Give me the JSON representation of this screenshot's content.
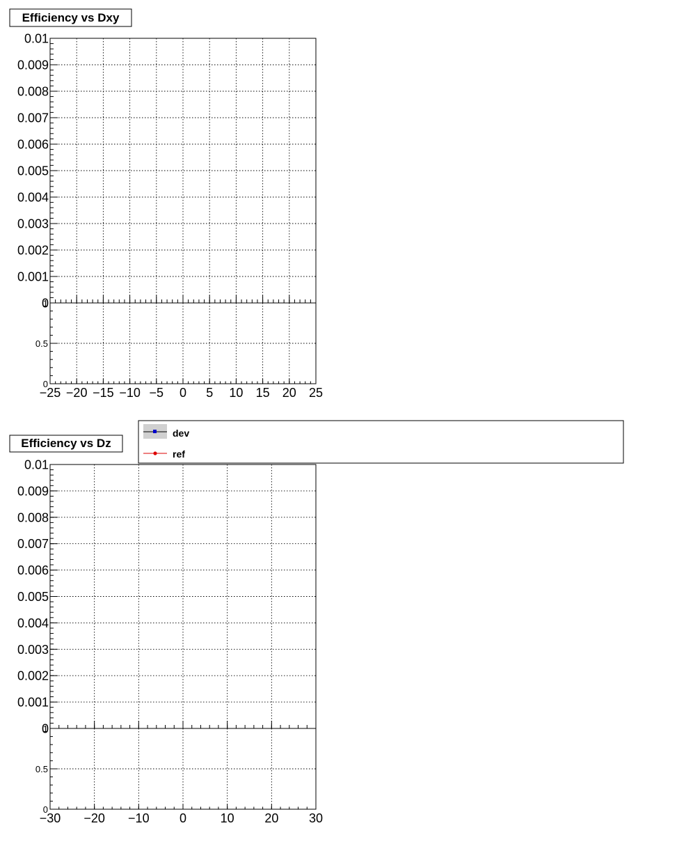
{
  "colors": {
    "dev": "#0000cc",
    "ref": "#dd0000",
    "dev_band": "#d0d0d0"
  },
  "legend": {
    "entries": [
      {
        "label": "dev",
        "marker": "square",
        "color": "#0000cc"
      },
      {
        "label": "ref",
        "marker": "circle",
        "color": "#dd0000"
      }
    ]
  },
  "chart_data": [
    {
      "type": "line",
      "title": "Efficiency vs Dxy",
      "xlabel": "",
      "ylabel": "",
      "xlim": [
        -25,
        25
      ],
      "xticks": [
        "−25",
        "−20",
        "−15",
        "−10",
        "−5",
        "0",
        "5",
        "10",
        "15",
        "20",
        "25"
      ],
      "ylim": [
        0,
        0.01
      ],
      "yticks": [
        "0",
        "0.001",
        "0.002",
        "0.003",
        "0.004",
        "0.005",
        "0.006",
        "0.007",
        "0.008",
        "0.009",
        "0.01"
      ],
      "ratio_ylim": [
        0,
        1
      ],
      "ratio_yticks": [
        "0",
        "0.5",
        "1"
      ],
      "grid": true,
      "series": [
        {
          "name": "dev",
          "x": [],
          "y": []
        },
        {
          "name": "ref",
          "x": [],
          "y": []
        }
      ]
    },
    {
      "type": "line",
      "title": "Efficiency vs Dz",
      "xlabel": "",
      "ylabel": "",
      "xlim": [
        -30,
        30
      ],
      "xticks": [
        "−30",
        "−20",
        "−10",
        "0",
        "10",
        "20",
        "30"
      ],
      "ylim": [
        0,
        0.01
      ],
      "yticks": [
        "0",
        "0.001",
        "0.002",
        "0.003",
        "0.004",
        "0.005",
        "0.006",
        "0.007",
        "0.008",
        "0.009",
        "0.01"
      ],
      "ratio_ylim": [
        0,
        1
      ],
      "ratio_yticks": [
        "0",
        "0.5",
        "1"
      ],
      "grid": true,
      "series": [
        {
          "name": "dev",
          "x": [],
          "y": []
        },
        {
          "name": "ref",
          "x": [],
          "y": []
        }
      ]
    }
  ]
}
